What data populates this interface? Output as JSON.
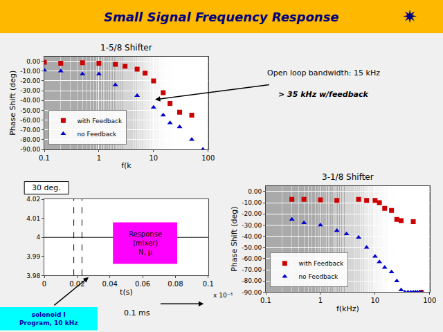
{
  "title": "Small Signal Frequency Response",
  "annotations": [
    "✷"
  ],
  "chart_data": [
    {
      "type": "scatter",
      "title": "1-5/8 Shifter",
      "xlabel": "f(k",
      "ylabel": "Phase Shift (deg)",
      "log": "x",
      "xlim": [
        0.1,
        100
      ],
      "xticks": [
        0.1,
        1,
        10,
        100
      ],
      "ylim": [
        -90,
        5
      ],
      "yticks": [
        {
          "value": 0,
          "label": "0.00"
        },
        {
          "value": -10,
          "label": "-10.00"
        },
        {
          "value": -20,
          "label": "-20.00"
        },
        {
          "value": -30,
          "label": "-30.00"
        },
        {
          "value": -40,
          "label": "-40.00"
        },
        {
          "value": -50,
          "label": "-50.00"
        },
        {
          "value": -60,
          "label": "-60.00"
        },
        {
          "value": -70,
          "label": "-70.00"
        },
        {
          "value": -80,
          "label": "-80.00"
        },
        {
          "value": -90,
          "label": "-90.00"
        }
      ],
      "grid": true,
      "legend": "lower left",
      "series": [
        {
          "name": "with Feedback",
          "color": "#CC0000",
          "marker": "square",
          "x": [
            0.1,
            0.2,
            0.5,
            1,
            2,
            3,
            5,
            7,
            10,
            15,
            20,
            30,
            50
          ],
          "values": [
            -1,
            -2,
            -1.5,
            -2,
            -3,
            -5,
            -8,
            -12,
            -20,
            -32,
            -43,
            -52,
            -55
          ]
        },
        {
          "name": "no Feedback",
          "color": "#0000CC",
          "marker": "triangle-up",
          "x": [
            0.1,
            0.2,
            0.5,
            1,
            2,
            5,
            10,
            15,
            20,
            30,
            50,
            80
          ],
          "values": [
            -9,
            -10,
            -13,
            -13,
            -24,
            -35,
            -47,
            -55,
            -63,
            -67,
            -80,
            -90
          ]
        }
      ],
      "annotations": [
        "Open loop bandwidth: 15 kHz",
        "> 35 kHz w/feedback"
      ]
    },
    {
      "type": "scatter",
      "title": "3-1/8 Shifter",
      "xlabel": "f(kHz)",
      "ylabel": "Phase Shift (deg)",
      "log": "x",
      "xlim": [
        0.1,
        100
      ],
      "xticks": [
        0.1,
        1,
        10,
        100
      ],
      "ylim": [
        -90,
        5
      ],
      "yticks": [
        {
          "value": 0,
          "label": "0.00"
        },
        {
          "value": -10,
          "label": "-10.00"
        },
        {
          "value": -20,
          "label": "-20.00"
        },
        {
          "value": -30,
          "label": "-30.00"
        },
        {
          "value": -40,
          "label": "-40.00"
        },
        {
          "value": -50,
          "label": "-50.00"
        },
        {
          "value": -60,
          "label": "-60.00"
        },
        {
          "value": -70,
          "label": "-70.00"
        },
        {
          "value": -80,
          "label": "-80.00"
        },
        {
          "value": -90,
          "label": "-90.00"
        }
      ],
      "grid": true,
      "legend": "lower left",
      "series": [
        {
          "name": "with Feedback",
          "color": "#CC0000",
          "marker": "square",
          "x": [
            0.3,
            0.5,
            1,
            2,
            5,
            7,
            10,
            12,
            15,
            20,
            25,
            30,
            50,
            70
          ],
          "values": [
            -7,
            -7,
            -7.5,
            -8,
            -7,
            -8,
            -8,
            -10,
            -15,
            -17,
            -25,
            -26,
            -27,
            -90
          ]
        },
        {
          "name": "no Feedback",
          "color": "#0000CC",
          "marker": "triangle-up",
          "x": [
            0.3,
            0.5,
            1,
            2,
            3,
            5,
            7,
            10,
            12,
            15,
            20,
            25,
            30,
            35,
            40,
            45,
            50,
            55,
            60,
            70
          ],
          "values": [
            -25,
            -28,
            -30,
            -35,
            -38,
            -41,
            -50,
            -58,
            -63,
            -68,
            -72,
            -80,
            -88,
            -90,
            -90,
            -90,
            -90,
            -90,
            -90,
            -90
          ]
        }
      ]
    },
    {
      "type": "line",
      "xlabel": "t(s)",
      "xlim": [
        0,
        0.1
      ],
      "xticks": [
        0,
        0.02,
        0.04,
        0.06,
        0.08,
        0.1
      ],
      "ylim": [
        3.98,
        4.02
      ],
      "yticks": [
        3.98,
        3.99,
        4,
        4.01,
        4.02
      ],
      "series": [
        {
          "color": "#000000",
          "line_style": "solid",
          "x": [
            0,
            0.1
          ],
          "values": [
            4.0,
            4.0
          ]
        },
        {
          "color": "#000000",
          "line_style": "dashed",
          "x": [
            0.018,
            0.018
          ],
          "values": [
            3.98,
            4.02
          ]
        },
        {
          "color": "#000000",
          "line_style": "dashed",
          "x": [
            0.023,
            0.023
          ],
          "values": [
            3.98,
            4.02
          ]
        }
      ],
      "annotations": [
        "30 deg.",
        "Response\n(mixer)\nN, μ",
        "solenoid I\nProgram, 10 kHz",
        "0.1 ms",
        "x 10⁻³"
      ]
    }
  ]
}
